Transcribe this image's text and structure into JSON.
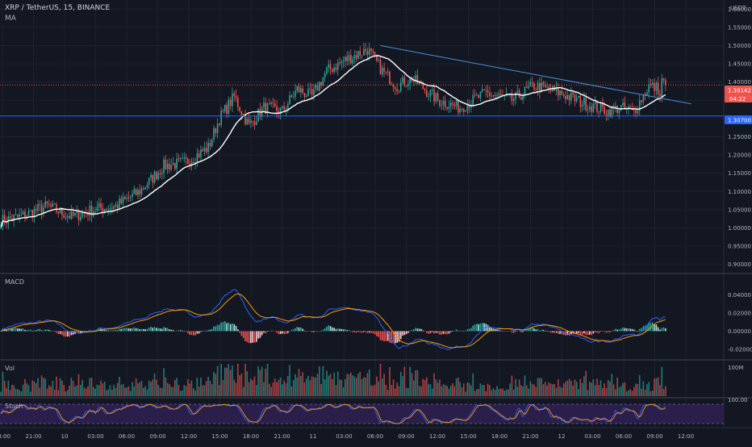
{
  "header": {
    "symbol": "XRP / TetherUS, 15, BINANCE",
    "indicator": "MA"
  },
  "price_axis": {
    "currency": "USDT",
    "ticks": [
      "1.60000",
      "1.55000",
      "1.50000",
      "1.45000",
      "1.40000",
      "1.35000",
      "1.30000",
      "1.25000",
      "1.20000",
      "1.15000",
      "1.10000",
      "1.05000",
      "1.00000",
      "0.95000",
      "0.90000"
    ],
    "last_price": "1.39142",
    "countdown": "04:22",
    "hline_price": "1.30700"
  },
  "macd": {
    "label": "MACD",
    "ticks": [
      "0.04000",
      "0.02000",
      "0.00000",
      "-0.02000"
    ]
  },
  "vol": {
    "label": "Vol",
    "tick": "100M"
  },
  "stoch": {
    "label": "Stoch",
    "tick": "100.00"
  },
  "time_axis": [
    "18:00",
    "21:00",
    "10",
    "03:00",
    "06:00",
    "09:00",
    "12:00",
    "15:00",
    "18:00",
    "21:00",
    "11",
    "03:00",
    "06:00",
    "09:00",
    "12:00",
    "15:00",
    "18:00",
    "21:00",
    "12",
    "03:00",
    "06:00",
    "09:00",
    "12:00"
  ],
  "colors": {
    "background": "#131722",
    "up": "#26a69a",
    "down": "#ef5350",
    "ma": "#ffffff",
    "trendline": "#4a90d9",
    "hline": "#2962ff",
    "macd_line": "#2962ff",
    "signal_line": "#ff9800",
    "stoch_bg": "#2a1f4a"
  },
  "chart_data": {
    "type": "candlestick",
    "price_range": [
      0.875,
      1.625
    ],
    "anchors": [
      [
        0,
        1.02
      ],
      [
        10,
        1.03
      ],
      [
        25,
        1.06
      ],
      [
        38,
        1.03
      ],
      [
        50,
        1.05
      ],
      [
        62,
        1.06
      ],
      [
        75,
        1.1
      ],
      [
        88,
        1.17
      ],
      [
        100,
        1.18
      ],
      [
        112,
        1.22
      ],
      [
        118,
        1.3
      ],
      [
        126,
        1.36
      ],
      [
        134,
        1.28
      ],
      [
        142,
        1.33
      ],
      [
        152,
        1.32
      ],
      [
        160,
        1.38
      ],
      [
        168,
        1.36
      ],
      [
        176,
        1.43
      ],
      [
        186,
        1.46
      ],
      [
        198,
        1.49
      ],
      [
        206,
        1.43
      ],
      [
        214,
        1.39
      ],
      [
        222,
        1.41
      ],
      [
        236,
        1.35
      ],
      [
        248,
        1.33
      ],
      [
        262,
        1.37
      ],
      [
        276,
        1.35
      ],
      [
        288,
        1.39
      ],
      [
        302,
        1.37
      ],
      [
        316,
        1.34
      ],
      [
        328,
        1.32
      ],
      [
        334,
        1.33
      ],
      [
        342,
        1.32
      ],
      [
        350,
        1.39
      ],
      [
        356,
        1.38
      ]
    ],
    "trendline": {
      "from": [
        205,
        1.5
      ],
      "to": [
        373,
        1.34
      ]
    },
    "horizontal_line": 1.307,
    "macd_range": [
      -0.028,
      0.058
    ],
    "volume_max": 100
  }
}
